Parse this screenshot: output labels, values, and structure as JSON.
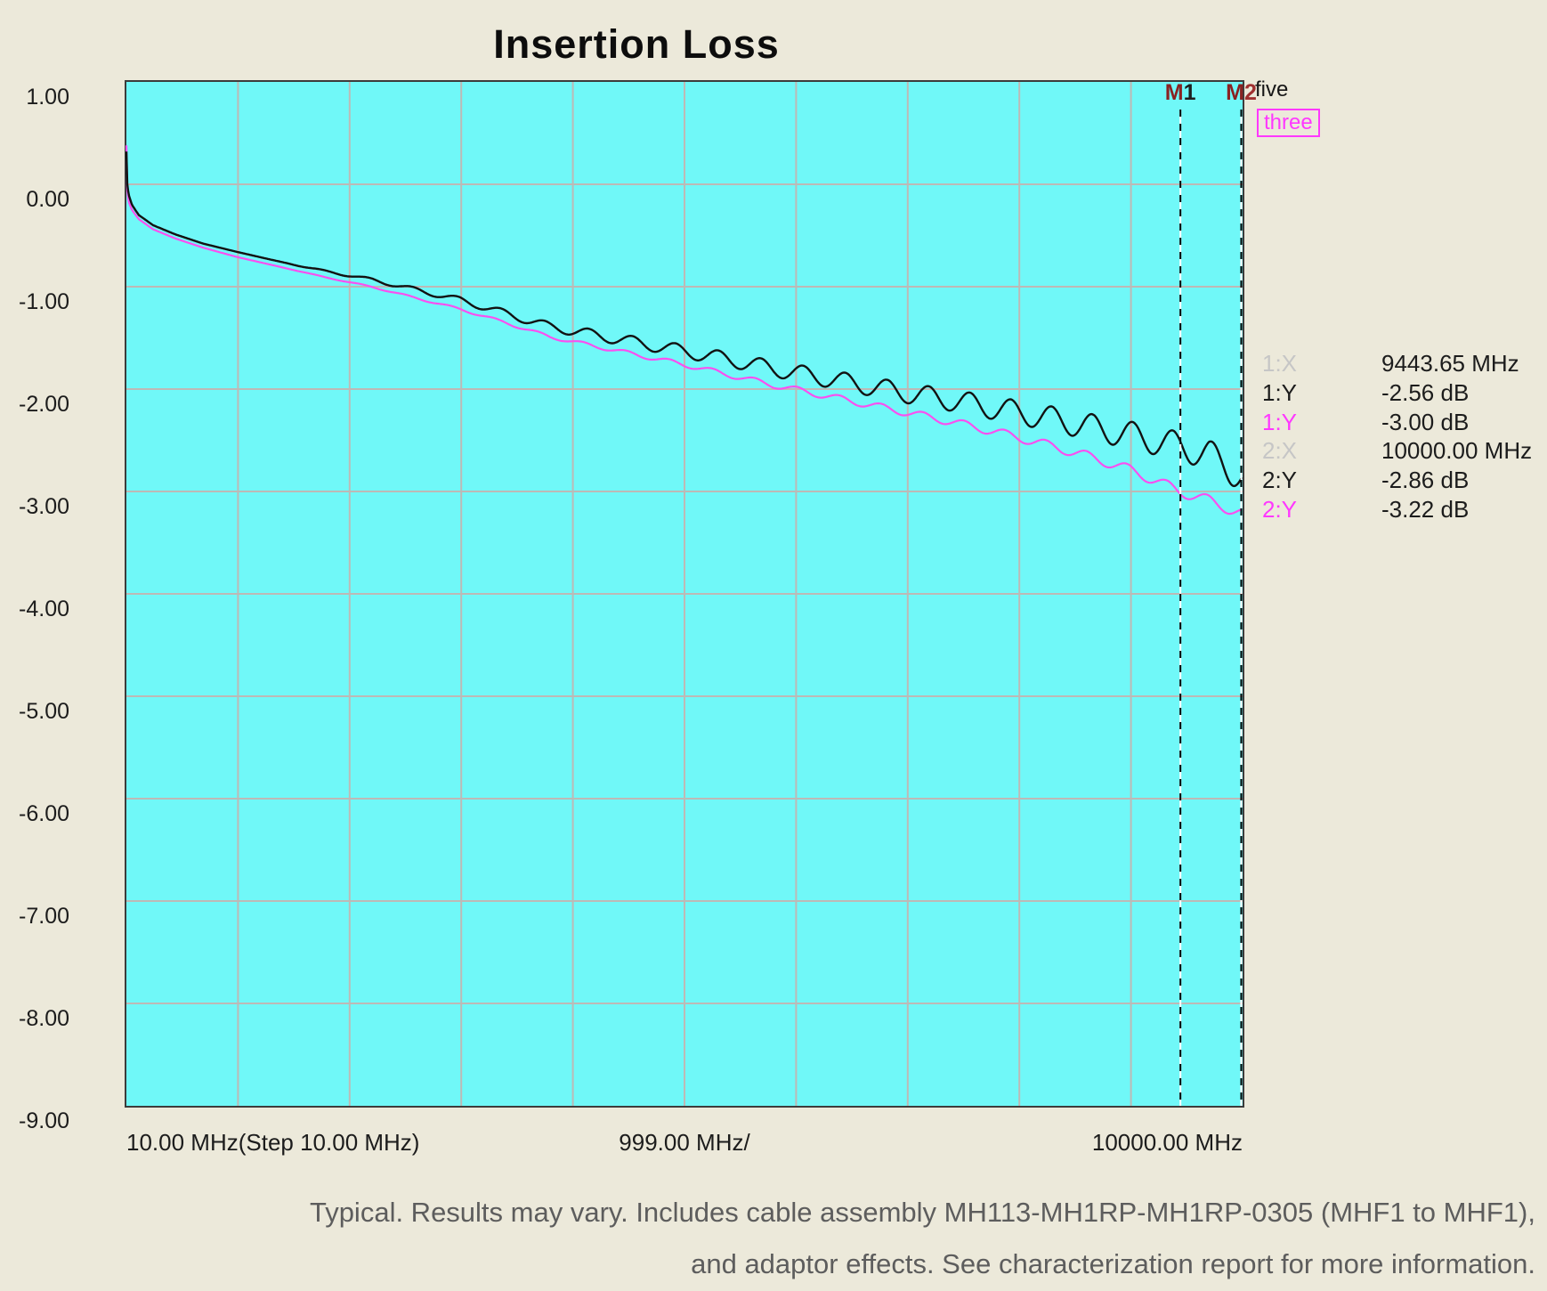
{
  "title": "Insertion Loss",
  "caption": {
    "line1": "Typical. Results may vary. Includes cable assembly MH113-MH1RP-MH1RP-0305  (MHF1 to MHF1),",
    "line2": "and adaptor effects. See characterization report for more information."
  },
  "colors": {
    "page_background": "#ECE9DA",
    "plot_background": "#70F8F8",
    "grid": "#BDB9B6",
    "plot_border": "#3C3C3C",
    "trace_black": "#121212",
    "trace_magenta": "#FA50F0",
    "magenta_text": "#FF38FF",
    "gray_label": "#C6C6C6",
    "black_label": "#1C1C1C",
    "marker_m": "#8A2222",
    "marker_num_m1": "#1F1F1F",
    "marker_num_m2": "#A03030"
  },
  "chart_data": {
    "type": "line",
    "title": "Insertion Loss",
    "x_axis": {
      "min_mhz": 10,
      "max_mhz": 10000,
      "divisions": 10,
      "labels": [
        "10.00 MHz(Step 10.00 MHz)",
        "999.00 MHz/",
        "10000.00 MHz"
      ]
    },
    "y_axis": {
      "min_db": -9,
      "max_db": 1,
      "divisions": 10,
      "unit": "dB",
      "tick_labels": [
        "1.00",
        "0.00",
        "-1.00",
        "-2.00",
        "-3.00",
        "-4.00",
        "-5.00",
        "-6.00",
        "-7.00",
        "-8.00",
        "-9.00"
      ]
    },
    "grid": true,
    "markers": [
      {
        "name": "M1",
        "freq_mhz": 9443.65
      },
      {
        "name": "M2",
        "freq_mhz": 10000.0
      }
    ],
    "series": [
      {
        "name": "five",
        "color_key": "trace_black",
        "anchors_mhz_db": [
          [
            10,
            0.32
          ],
          [
            16,
            0.02
          ],
          [
            30,
            -0.1
          ],
          [
            60,
            -0.2
          ],
          [
            120,
            -0.3
          ],
          [
            250,
            -0.4
          ],
          [
            450,
            -0.49
          ],
          [
            700,
            -0.58
          ],
          [
            1000,
            -0.66
          ],
          [
            1400,
            -0.76
          ],
          [
            1800,
            -0.85
          ],
          [
            2200,
            -0.93
          ],
          [
            2600,
            -1.03
          ],
          [
            3000,
            -1.13
          ],
          [
            3400,
            -1.26
          ],
          [
            3800,
            -1.39
          ],
          [
            4200,
            -1.47
          ],
          [
            4600,
            -1.55
          ],
          [
            5000,
            -1.63
          ],
          [
            5400,
            -1.71
          ],
          [
            5800,
            -1.8
          ],
          [
            6200,
            -1.88
          ],
          [
            6600,
            -1.96
          ],
          [
            7000,
            -2.04
          ],
          [
            7400,
            -2.11
          ],
          [
            7800,
            -2.19
          ],
          [
            8200,
            -2.27
          ],
          [
            8600,
            -2.36
          ],
          [
            9000,
            -2.45
          ],
          [
            9443.65,
            -2.56
          ],
          [
            9700,
            -2.64
          ],
          [
            10000,
            -2.86
          ]
        ],
        "ripple": {
          "start_mhz": 1300,
          "max_amp_db": 0.15,
          "base_period_mhz": 420,
          "chirp": 2.2,
          "phase": 0.0
        }
      },
      {
        "name": "three",
        "color_key": "trace_magenta",
        "anchors_mhz_db": [
          [
            10,
            0.38
          ],
          [
            16,
            -0.04
          ],
          [
            30,
            -0.17
          ],
          [
            60,
            -0.25
          ],
          [
            120,
            -0.34
          ],
          [
            250,
            -0.44
          ],
          [
            450,
            -0.53
          ],
          [
            700,
            -0.62
          ],
          [
            1000,
            -0.71
          ],
          [
            1400,
            -0.81
          ],
          [
            1800,
            -0.91
          ],
          [
            2200,
            -1.0
          ],
          [
            2600,
            -1.11
          ],
          [
            3000,
            -1.22
          ],
          [
            3400,
            -1.35
          ],
          [
            3800,
            -1.49
          ],
          [
            4200,
            -1.58
          ],
          [
            4600,
            -1.67
          ],
          [
            5000,
            -1.76
          ],
          [
            5400,
            -1.86
          ],
          [
            5800,
            -1.96
          ],
          [
            6200,
            -2.05
          ],
          [
            6600,
            -2.14
          ],
          [
            7000,
            -2.23
          ],
          [
            7400,
            -2.32
          ],
          [
            7800,
            -2.42
          ],
          [
            8200,
            -2.53
          ],
          [
            8600,
            -2.65
          ],
          [
            9000,
            -2.79
          ],
          [
            9443.65,
            -3.0
          ],
          [
            9700,
            -3.09
          ],
          [
            10000,
            -3.22
          ]
        ],
        "ripple": {
          "start_mhz": 1300,
          "max_amp_db": 0.055,
          "base_period_mhz": 420,
          "chirp": 2.2,
          "phase": 0.9
        }
      }
    ],
    "marker_readout": {
      "rows": [
        {
          "label": "1:X",
          "color": "gray",
          "value": "9443.65 MHz"
        },
        {
          "label": "1:Y",
          "color": "black",
          "value": "-2.56 dB"
        },
        {
          "label": "1:Y",
          "color": "magenta",
          "value": "-3.00 dB"
        },
        {
          "label": "2:X",
          "color": "gray",
          "value": "10000.00 MHz"
        },
        {
          "label": "2:Y",
          "color": "black",
          "value": "-2.86 dB"
        },
        {
          "label": "2:Y",
          "color": "magenta",
          "value": "-3.22 dB"
        }
      ]
    }
  }
}
